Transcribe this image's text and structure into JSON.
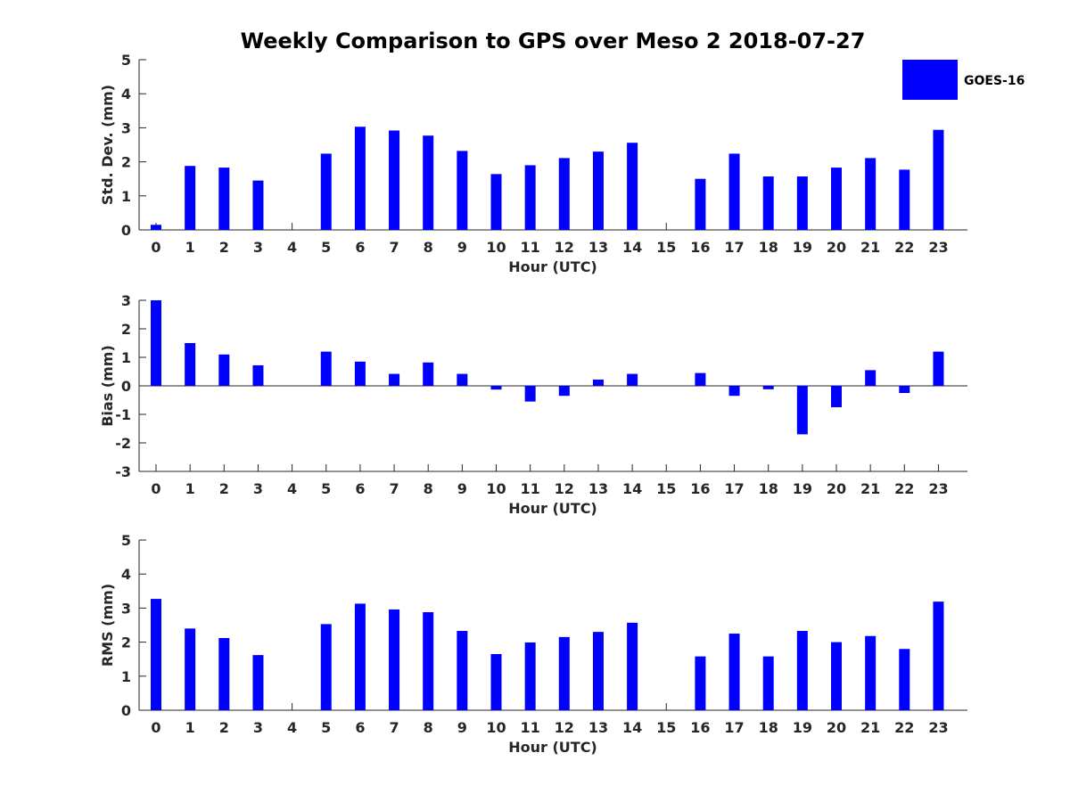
{
  "chart_data": {
    "type": "bar",
    "title": "Weekly Comparison to GPS over Meso 2 2018-07-27",
    "legend": {
      "label": "GOES-16",
      "color": "#0000ff",
      "placement": "top-right"
    },
    "categories": [
      "0",
      "1",
      "2",
      "3",
      "4",
      "5",
      "6",
      "7",
      "8",
      "9",
      "10",
      "11",
      "12",
      "13",
      "14",
      "15",
      "16",
      "17",
      "18",
      "19",
      "20",
      "21",
      "22",
      "23"
    ],
    "subplots": [
      {
        "name": "std-dev",
        "xlabel": "Hour (UTC)",
        "ylabel": "Std. Dev. (mm)",
        "ylim": [
          0,
          5
        ],
        "yticks": [
          "0",
          "1",
          "2",
          "3",
          "4",
          "5"
        ],
        "series": [
          {
            "name": "GOES-16",
            "values": [
              0.15,
              1.88,
              1.83,
              1.45,
              0,
              2.24,
              3.03,
              2.92,
              2.77,
              2.32,
              1.64,
              1.9,
              2.11,
              2.3,
              2.56,
              0,
              1.5,
              2.24,
              1.57,
              1.57,
              1.83,
              2.11,
              1.77,
              2.94
            ]
          }
        ]
      },
      {
        "name": "bias",
        "xlabel": "Hour (UTC)",
        "ylabel": "Bias (mm)",
        "ylim": [
          -3,
          3
        ],
        "yticks": [
          "-3",
          "-2",
          "-1",
          "0",
          "1",
          "2",
          "3"
        ],
        "series": [
          {
            "name": "GOES-16",
            "values": [
              3.0,
              1.5,
              1.1,
              0.72,
              0,
              1.2,
              0.85,
              0.42,
              0.82,
              0.42,
              -0.13,
              -0.55,
              -0.35,
              0.22,
              0.42,
              0,
              0.45,
              -0.35,
              -0.12,
              -1.7,
              -0.75,
              0.55,
              -0.25,
              1.2
            ]
          }
        ]
      },
      {
        "name": "rms",
        "xlabel": "Hour (UTC)",
        "ylabel": "RMS (mm)",
        "ylim": [
          0,
          5
        ],
        "yticks": [
          "0",
          "1",
          "2",
          "3",
          "4",
          "5"
        ],
        "series": [
          {
            "name": "GOES-16",
            "values": [
              3.27,
              2.4,
              2.12,
              1.62,
              0,
              2.53,
              3.13,
              2.96,
              2.88,
              2.33,
              1.65,
              1.99,
              2.15,
              2.3,
              2.57,
              0,
              1.58,
              2.25,
              1.58,
              2.33,
              2.0,
              2.18,
              1.8,
              3.19
            ]
          }
        ]
      }
    ]
  }
}
